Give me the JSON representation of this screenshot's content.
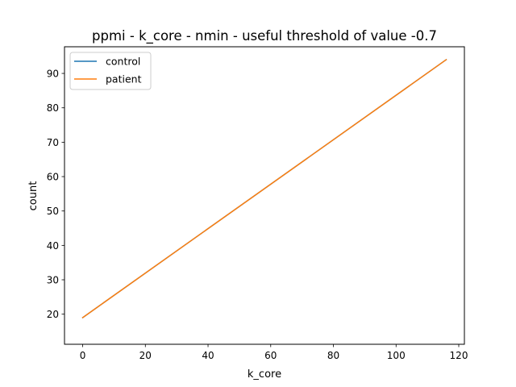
{
  "chart_data": {
    "type": "line",
    "title": "ppmi - k_core - nmin - useful threshold of value -0.7",
    "xlabel": "k_core",
    "ylabel": "count",
    "xlim": [
      -5.8,
      121.8
    ],
    "ylim": [
      11.25,
      97.75
    ],
    "xticks": [
      0,
      20,
      40,
      60,
      80,
      100,
      120
    ],
    "yticks": [
      20,
      30,
      40,
      50,
      60,
      70,
      80,
      90
    ],
    "grid": false,
    "legend_position": "upper-left",
    "series": [
      {
        "name": "control",
        "color": "#1f77b4",
        "x": [
          0,
          116
        ],
        "y": [
          19,
          94
        ]
      },
      {
        "name": "patient",
        "color": "#ff7f0e",
        "x": [
          0,
          116
        ],
        "y": [
          19,
          94
        ]
      }
    ]
  }
}
